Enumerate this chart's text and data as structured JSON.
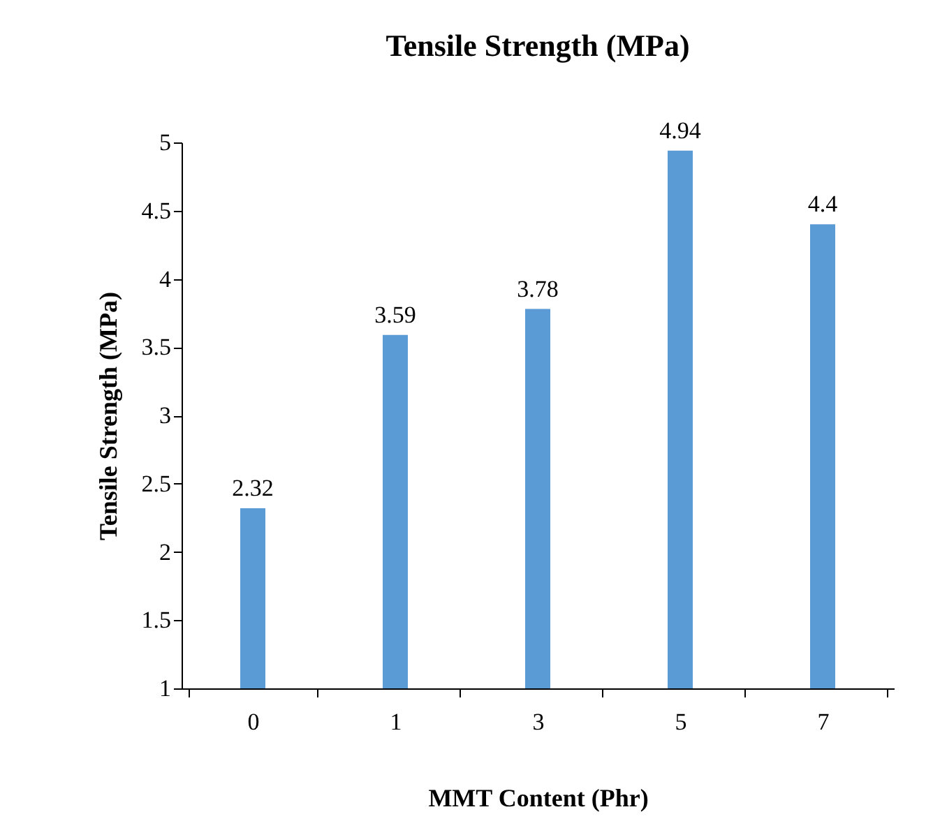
{
  "chart_data": {
    "type": "bar",
    "title": "Tensile Strength (MPa)",
    "xlabel": "MMT Content (Phr)",
    "ylabel": "Tensile Strength (MPa)",
    "categories": [
      "0",
      "1",
      "3",
      "5",
      "7"
    ],
    "values": [
      2.32,
      3.59,
      3.78,
      4.94,
      4.4
    ],
    "color": "#5b9bd5",
    "ylim": [
      1,
      5
    ],
    "yticks": [
      1,
      1.5,
      2,
      2.5,
      3,
      3.5,
      4,
      4.5,
      5
    ],
    "data_labels": true,
    "grid": false
  }
}
